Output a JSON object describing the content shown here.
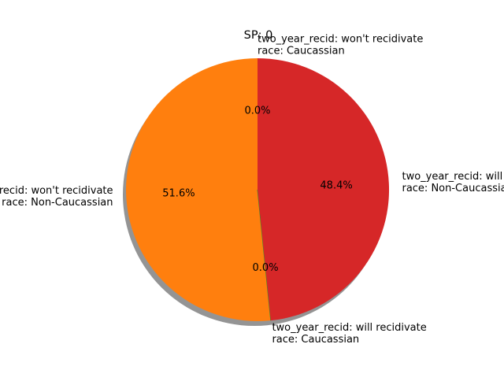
{
  "chart_data": {
    "type": "pie",
    "title": "SP: 0",
    "shadow": true,
    "start_angle_deg": 90,
    "direction": "counterclockwise",
    "slices": [
      {
        "label_lines": [
          "two_year_recid: won't recidivate",
          "race: Caucassian"
        ],
        "value": 0.0,
        "pct_label": "0.0%",
        "color": "#1f77b4"
      },
      {
        "label_lines": [
          "two_year_recid: won't recidivate",
          "race: Non-Caucassian"
        ],
        "value": 51.6,
        "pct_label": "51.6%",
        "color": "#ff7f0e"
      },
      {
        "label_lines": [
          "two_year_recid: will recidivate",
          "race: Caucassian"
        ],
        "value": 0.0,
        "pct_label": "0.0%",
        "color": "#2ca02c"
      },
      {
        "label_lines": [
          "two_year_recid: will recidivate",
          "race: Non-Caucassian"
        ],
        "value": 48.4,
        "pct_label": "48.4%",
        "color": "#d62728"
      }
    ]
  }
}
